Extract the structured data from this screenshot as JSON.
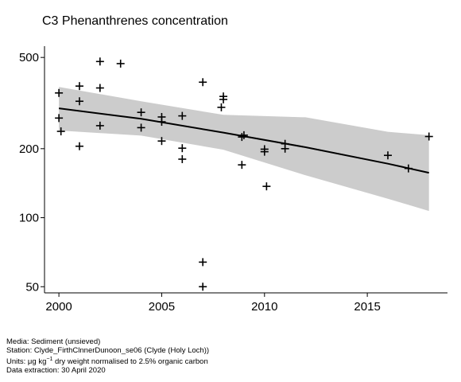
{
  "chart_data": {
    "type": "scatter",
    "title": "C3 Phenanthrenes concentration",
    "y_scale": "log",
    "xlim": [
      1999.3,
      2018.9
    ],
    "ylim": [
      47,
      560
    ],
    "x_ticks": [
      2000,
      2005,
      2010,
      2015
    ],
    "y_ticks": [
      50,
      100,
      200,
      500
    ],
    "grid": false,
    "points": [
      {
        "x": 2000,
        "y": 350
      },
      {
        "x": 2000,
        "y": 272
      },
      {
        "x": 2000.1,
        "y": 238
      },
      {
        "x": 2001,
        "y": 375
      },
      {
        "x": 2001,
        "y": 322
      },
      {
        "x": 2001,
        "y": 205
      },
      {
        "x": 2002,
        "y": 480
      },
      {
        "x": 2002,
        "y": 368
      },
      {
        "x": 2002,
        "y": 252
      },
      {
        "x": 2003,
        "y": 470
      },
      {
        "x": 2004,
        "y": 288
      },
      {
        "x": 2004,
        "y": 247
      },
      {
        "x": 2005,
        "y": 275
      },
      {
        "x": 2005,
        "y": 262
      },
      {
        "x": 2005,
        "y": 216
      },
      {
        "x": 2006,
        "y": 278
      },
      {
        "x": 2006,
        "y": 201
      },
      {
        "x": 2006,
        "y": 180
      },
      {
        "x": 2007,
        "y": 390
      },
      {
        "x": 2007,
        "y": 64
      },
      {
        "x": 2007,
        "y": 50
      },
      {
        "x": 2008,
        "y": 338
      },
      {
        "x": 2008,
        "y": 328
      },
      {
        "x": 2007.9,
        "y": 303
      },
      {
        "x": 2009,
        "y": 229
      },
      {
        "x": 2008.9,
        "y": 225
      },
      {
        "x": 2008.9,
        "y": 170
      },
      {
        "x": 2010,
        "y": 199
      },
      {
        "x": 2010,
        "y": 194
      },
      {
        "x": 2010.1,
        "y": 137
      },
      {
        "x": 2011,
        "y": 210
      },
      {
        "x": 2011,
        "y": 200
      },
      {
        "x": 2016,
        "y": 187
      },
      {
        "x": 2017,
        "y": 164
      },
      {
        "x": 2018,
        "y": 226
      }
    ],
    "trend": {
      "x": [
        2000,
        2004,
        2008,
        2012,
        2016,
        2018
      ],
      "y": [
        300,
        270,
        235,
        203,
        172,
        157
      ],
      "lower": [
        240,
        228,
        198,
        153,
        121,
        107
      ],
      "upper": [
        372,
        322,
        281,
        274,
        237,
        229
      ],
      "line_color": "#000000",
      "band_color": "#cccccc"
    }
  },
  "footer": {
    "media": "Media: Sediment (unsieved)",
    "station": "Station: Clyde_FirthClnnerDunoon_se06 (Clyde (Holy Loch))",
    "units_prefix": "Units:  μg kg",
    "units_sup": "−1",
    "units_suffix": " dry weight normalised to 2.5% organic carbon",
    "extraction": "Data extraction: 30 April 2020"
  }
}
